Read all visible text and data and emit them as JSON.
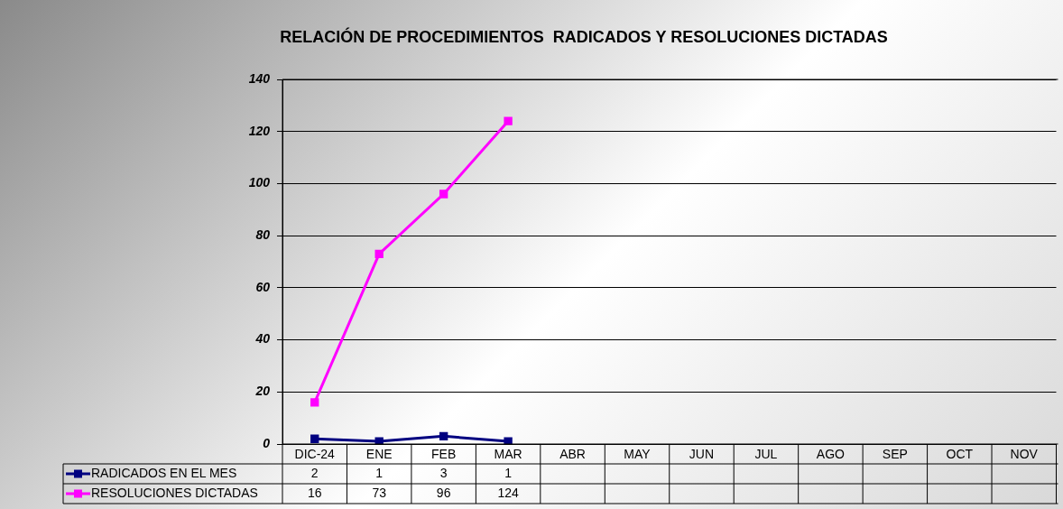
{
  "chart_data": {
    "type": "line",
    "title": "RELACIÓN DE PROCEDIMIENTOS  RADICADOS Y RESOLUCIONES DICTADAS",
    "categories": [
      "DIC-24",
      "ENE",
      "FEB",
      "MAR",
      "ABR",
      "MAY",
      "JUN",
      "JUL",
      "AGO",
      "SEP",
      "OCT",
      "NOV"
    ],
    "series": [
      {
        "name": "RADICADOS EN EL MES",
        "color": "#000080",
        "values": [
          2,
          1,
          3,
          1,
          null,
          null,
          null,
          null,
          null,
          null,
          null,
          null
        ]
      },
      {
        "name": "RESOLUCIONES DICTADAS",
        "color": "#ff00ff",
        "values": [
          16,
          73,
          96,
          124,
          null,
          null,
          null,
          null,
          null,
          null,
          null,
          null
        ]
      }
    ],
    "ylim": [
      0,
      140
    ],
    "yticks": [
      0,
      20,
      40,
      60,
      80,
      100,
      120,
      140
    ],
    "grid": "y",
    "legend": "bottom",
    "marker": "square",
    "data_labels": true
  }
}
